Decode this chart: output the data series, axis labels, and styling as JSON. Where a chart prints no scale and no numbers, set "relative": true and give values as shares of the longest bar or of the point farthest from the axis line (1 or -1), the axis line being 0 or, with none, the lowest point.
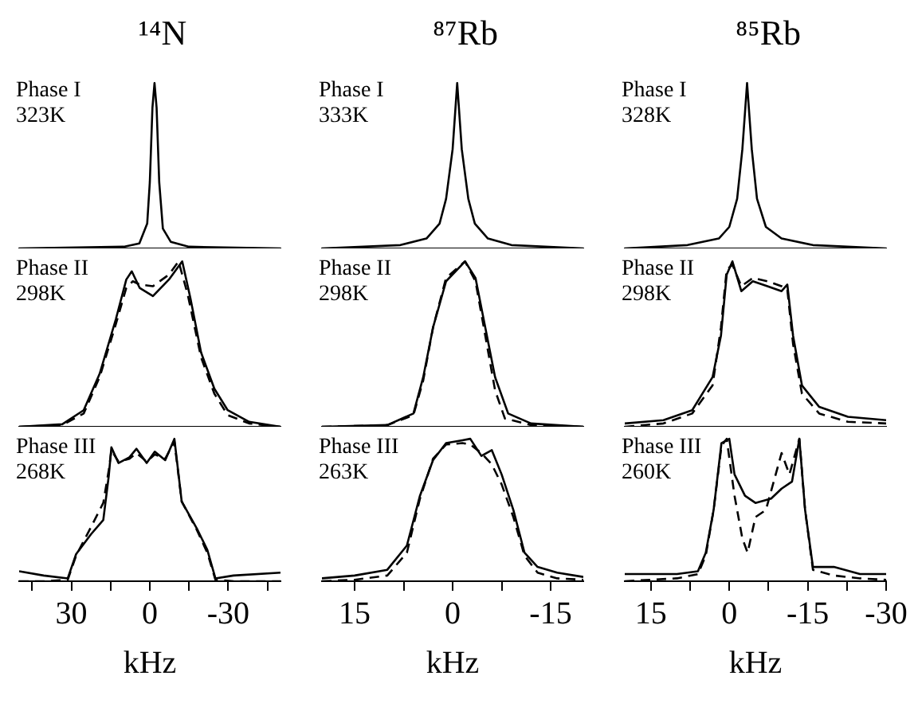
{
  "chart_data": [
    {
      "type": "line",
      "title": "¹⁴N",
      "annotations": [
        "Phase I",
        "323K"
      ],
      "relative": true,
      "xlim": [
        50,
        -50
      ],
      "xticks": [
        30,
        0,
        -30
      ],
      "tick_labels": false,
      "marker": "none",
      "series": [
        {
          "color": "#000000",
          "line_style": "solid",
          "x": [
            50,
            10,
            4,
            1,
            0,
            -1,
            -1.8,
            -2.6,
            -3.6,
            -5,
            -8,
            -15,
            -50
          ],
          "values": [
            0,
            0.01,
            0.03,
            0.15,
            0.4,
            0.85,
            1,
            0.85,
            0.4,
            0.12,
            0.04,
            0.01,
            0
          ]
        }
      ]
    },
    {
      "type": "line",
      "title": "⁸⁷Rb",
      "annotations": [
        "Phase I",
        "333K"
      ],
      "relative": true,
      "xlim": [
        20,
        -20
      ],
      "xticks": [
        15,
        0,
        -15
      ],
      "tick_labels": false,
      "marker": "none",
      "series": [
        {
          "color": "#000000",
          "line_style": "solid",
          "x": [
            20,
            8,
            4,
            2,
            1,
            0,
            -0.7,
            -1.4,
            -2.4,
            -3.4,
            -5.4,
            -9,
            -20
          ],
          "values": [
            0,
            0.02,
            0.06,
            0.15,
            0.3,
            0.6,
            1,
            0.6,
            0.3,
            0.15,
            0.06,
            0.02,
            0
          ]
        }
      ]
    },
    {
      "type": "line",
      "title": "⁸⁵Rb",
      "annotations": [
        "Phase I",
        "328K"
      ],
      "relative": true,
      "xlim": [
        20,
        -30
      ],
      "xticks": [
        15,
        0,
        -15,
        -30
      ],
      "tick_labels": false,
      "marker": "none",
      "series": [
        {
          "color": "#000000",
          "line_style": "solid",
          "x": [
            20,
            8,
            2,
            0,
            -1.5,
            -2.5,
            -3.4,
            -4.3,
            -5.3,
            -7,
            -10,
            -16,
            -30
          ],
          "values": [
            0,
            0.02,
            0.06,
            0.13,
            0.3,
            0.6,
            1,
            0.6,
            0.3,
            0.13,
            0.06,
            0.02,
            0
          ]
        }
      ]
    },
    {
      "type": "line",
      "annotations": [
        "Phase II",
        "298K"
      ],
      "relative": true,
      "xlim": [
        50,
        -50
      ],
      "xticks": [
        30,
        0,
        -30
      ],
      "tick_labels": false,
      "marker": "none",
      "series": [
        {
          "color": "#000000",
          "line_style": "solid",
          "x": [
            50,
            33.5,
            25.3,
            19.2,
            13,
            9,
            6.9,
            3.9,
            -1.2,
            -7.3,
            -12.4,
            -15.5,
            -19.6,
            -24.7,
            -29.8,
            -38,
            -50
          ],
          "values": [
            0,
            0.015,
            0.1,
            0.32,
            0.65,
            0.89,
            0.94,
            0.84,
            0.79,
            0.89,
            1,
            0.78,
            0.45,
            0.23,
            0.1,
            0.03,
            0
          ]
        },
        {
          "color": "#000000",
          "line_style": "dashed",
          "x": [
            50,
            33.5,
            25.3,
            19.2,
            13,
            9,
            6.5,
            3.9,
            -1.2,
            -7.3,
            -11,
            -14.5,
            -19.6,
            -24.7,
            -29.8,
            -38,
            -50
          ],
          "values": [
            0,
            0.01,
            0.08,
            0.3,
            0.62,
            0.84,
            0.88,
            0.86,
            0.85,
            0.92,
            1,
            0.8,
            0.42,
            0.2,
            0.07,
            0.02,
            0
          ]
        }
      ]
    },
    {
      "type": "line",
      "annotations": [
        "Phase II",
        "298K"
      ],
      "relative": true,
      "xlim": [
        20,
        -20
      ],
      "xticks": [
        15,
        0,
        -15
      ],
      "tick_labels": false,
      "marker": "none",
      "series": [
        {
          "color": "#000000",
          "line_style": "solid",
          "x": [
            20,
            10,
            6,
            4.5,
            3,
            1,
            -1.9,
            -3.5,
            -5,
            -6.5,
            -8.5,
            -12,
            -20
          ],
          "values": [
            0,
            0.01,
            0.08,
            0.3,
            0.6,
            0.88,
            1,
            0.9,
            0.6,
            0.3,
            0.08,
            0.02,
            0
          ]
        },
        {
          "color": "#000000",
          "line_style": "dashed",
          "x": [
            20,
            10,
            6,
            4.5,
            3,
            1,
            -1.9,
            -3.5,
            -5,
            -6.5,
            -8,
            -12,
            -20
          ],
          "values": [
            0,
            0.01,
            0.07,
            0.28,
            0.6,
            0.9,
            1,
            0.88,
            0.55,
            0.22,
            0.05,
            0.01,
            0
          ]
        }
      ]
    },
    {
      "type": "line",
      "annotations": [
        "Phase II",
        "298K"
      ],
      "relative": true,
      "xlim": [
        20,
        -30
      ],
      "xticks": [
        15,
        0,
        -15,
        -30
      ],
      "tick_labels": false,
      "marker": "none",
      "series": [
        {
          "color": "#000000",
          "line_style": "solid",
          "x": [
            20,
            12.6,
            7.1,
            3.2,
            1.6,
            0.5,
            -0.6,
            -2.3,
            -4.5,
            -7.3,
            -10,
            -11.1,
            -12.2,
            -13.9,
            -17.2,
            -22.7,
            -30
          ],
          "values": [
            0.02,
            0.04,
            0.1,
            0.3,
            0.55,
            0.92,
            1,
            0.82,
            0.88,
            0.85,
            0.82,
            0.86,
            0.55,
            0.25,
            0.12,
            0.06,
            0.04
          ]
        },
        {
          "color": "#000000",
          "line_style": "dashed",
          "x": [
            20,
            12.6,
            7.1,
            3.2,
            1.6,
            0.5,
            -0.6,
            -2.3,
            -4.5,
            -7.3,
            -10,
            -11.1,
            -12.2,
            -13.9,
            -17.2,
            -22.7,
            -30
          ],
          "values": [
            0,
            0.02,
            0.08,
            0.25,
            0.6,
            0.95,
            0.98,
            0.85,
            0.9,
            0.88,
            0.85,
            0.83,
            0.5,
            0.2,
            0.08,
            0.03,
            0.02
          ]
        }
      ]
    },
    {
      "type": "line",
      "xlabel": "kHz",
      "annotations": [
        "Phase III",
        "268K"
      ],
      "relative": true,
      "xlim": [
        50,
        -50
      ],
      "xticks": [
        {
          "value": 45,
          "label": null
        },
        30,
        {
          "value": 15,
          "label": null
        },
        0,
        {
          "value": -15,
          "label": null
        },
        -30,
        {
          "value": -45,
          "label": null
        }
      ],
      "tick_labels": "x",
      "marker": "none",
      "series": [
        {
          "color": "#000000",
          "line_style": "solid",
          "x": [
            50,
            40.6,
            31.4,
            28.2,
            22.5,
            17.8,
            15.7,
            14.7,
            12,
            7.8,
            5.1,
            1.2,
            -1.9,
            -5.9,
            -9.4,
            -12.2,
            -18,
            -22,
            -25.1,
            -32,
            -50
          ],
          "values": [
            0.07,
            0.04,
            0.02,
            0.19,
            0.33,
            0.43,
            0.74,
            0.94,
            0.83,
            0.87,
            0.93,
            0.83,
            0.91,
            0.85,
            1,
            0.56,
            0.37,
            0.22,
            0.02,
            0.04,
            0.06
          ]
        },
        {
          "color": "#000000",
          "line_style": "dashed",
          "x": [
            50,
            40.6,
            31.4,
            28.2,
            22.5,
            17.8,
            15.7,
            14.7,
            12,
            7.8,
            5.1,
            1.2,
            -1.9,
            -5.9,
            -9.4,
            -12.2,
            -18,
            -22,
            -25.1,
            -32,
            -50
          ],
          "values": [
            0,
            0,
            0.01,
            0.18,
            0.38,
            0.55,
            0.78,
            0.92,
            0.84,
            0.86,
            0.9,
            0.84,
            0.89,
            0.86,
            0.98,
            0.56,
            0.36,
            0.2,
            0.01,
            0,
            0
          ]
        }
      ]
    },
    {
      "type": "line",
      "xlabel": "kHz",
      "annotations": [
        "Phase III",
        "263K"
      ],
      "relative": true,
      "xlim": [
        20,
        -20
      ],
      "xticks": [
        15,
        {
          "value": 7.5,
          "label": null
        },
        0,
        {
          "value": -7.5,
          "label": null
        },
        -15
      ],
      "tick_labels": "x",
      "marker": "none",
      "series": [
        {
          "color": "#000000",
          "line_style": "solid",
          "x": [
            20,
            15,
            10,
            7,
            5,
            3,
            1,
            -1.5,
            -2.7,
            -4.4,
            -6,
            -7.5,
            -9.3,
            -11,
            -13,
            -16,
            -20
          ],
          "values": [
            0.02,
            0.04,
            0.08,
            0.25,
            0.6,
            0.85,
            0.97,
            0.99,
            1,
            0.88,
            0.92,
            0.75,
            0.5,
            0.2,
            0.1,
            0.06,
            0.03
          ]
        },
        {
          "color": "#000000",
          "line_style": "dashed",
          "x": [
            20,
            15,
            10,
            7,
            5,
            3,
            1,
            -1.5,
            -2.7,
            -4.4,
            -6,
            -7.5,
            -9.3,
            -11,
            -13,
            -16,
            -20
          ],
          "values": [
            0,
            0.01,
            0.04,
            0.2,
            0.58,
            0.86,
            0.96,
            0.97,
            0.96,
            0.9,
            0.82,
            0.68,
            0.45,
            0.18,
            0.06,
            0.02,
            0.01
          ]
        }
      ]
    },
    {
      "type": "line",
      "xlabel": "kHz",
      "annotations": [
        "Phase III",
        "260K"
      ],
      "relative": true,
      "xlim": [
        20,
        -30
      ],
      "xticks": [
        15,
        {
          "value": 7.5,
          "label": null
        },
        0,
        {
          "value": -7.5,
          "label": null
        },
        -15,
        {
          "value": -22.5,
          "label": null
        },
        -30
      ],
      "tick_labels": "x",
      "marker": "none",
      "series": [
        {
          "color": "#000000",
          "line_style": "solid",
          "x": [
            20,
            10,
            6,
            4.5,
            3,
            1.5,
            0,
            -1,
            -3,
            -5,
            -8,
            -10,
            -12,
            -13.4,
            -14.5,
            -16,
            -20,
            -25,
            -30
          ],
          "values": [
            0.05,
            0.05,
            0.07,
            0.2,
            0.5,
            0.97,
            1,
            0.75,
            0.6,
            0.55,
            0.58,
            0.65,
            0.7,
            1,
            0.5,
            0.1,
            0.1,
            0.05,
            0.05
          ]
        },
        {
          "color": "#000000",
          "line_style": "dashed",
          "x": [
            20,
            10,
            6,
            4.5,
            3,
            1.5,
            0.5,
            -1,
            -2.5,
            -3.5,
            -5,
            -7,
            -10,
            -11.5,
            -13.4,
            -14.5,
            -16,
            -20,
            -25,
            -30
          ],
          "values": [
            0,
            0.02,
            0.05,
            0.18,
            0.5,
            0.95,
            1,
            0.6,
            0.3,
            0.2,
            0.45,
            0.5,
            0.9,
            0.75,
            1,
            0.5,
            0.08,
            0.04,
            0.02,
            0.01
          ]
        }
      ]
    }
  ]
}
